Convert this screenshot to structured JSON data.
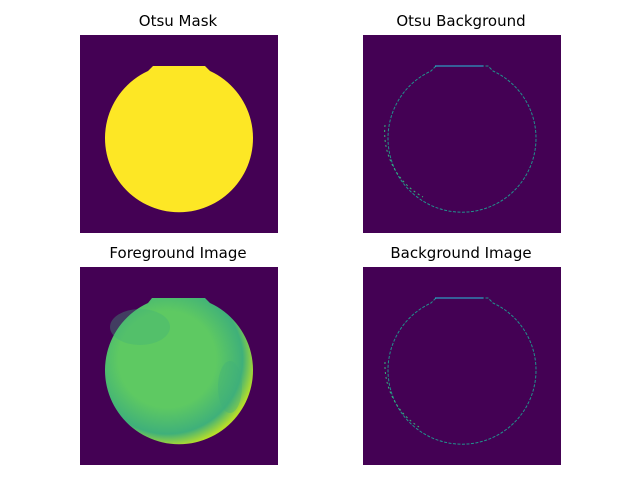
{
  "figure": {
    "panels": [
      {
        "title": "Otsu Mask",
        "kind": "mask"
      },
      {
        "title": "Otsu Background",
        "kind": "edge"
      },
      {
        "title": "Foreground Image",
        "kind": "foreground"
      },
      {
        "title": "Background Image",
        "kind": "edge"
      }
    ],
    "colors": {
      "background": "#440154",
      "mask_fill": "#fde725",
      "foreground_fill": "#5ec962",
      "foreground_dark": "#3fb07a",
      "foreground_edge": "#b5de2b",
      "edge_ring": "#21918c",
      "edge_ring_bright": "#35b779",
      "edge_top": "#26bfdc"
    },
    "colormap": "viridis"
  }
}
